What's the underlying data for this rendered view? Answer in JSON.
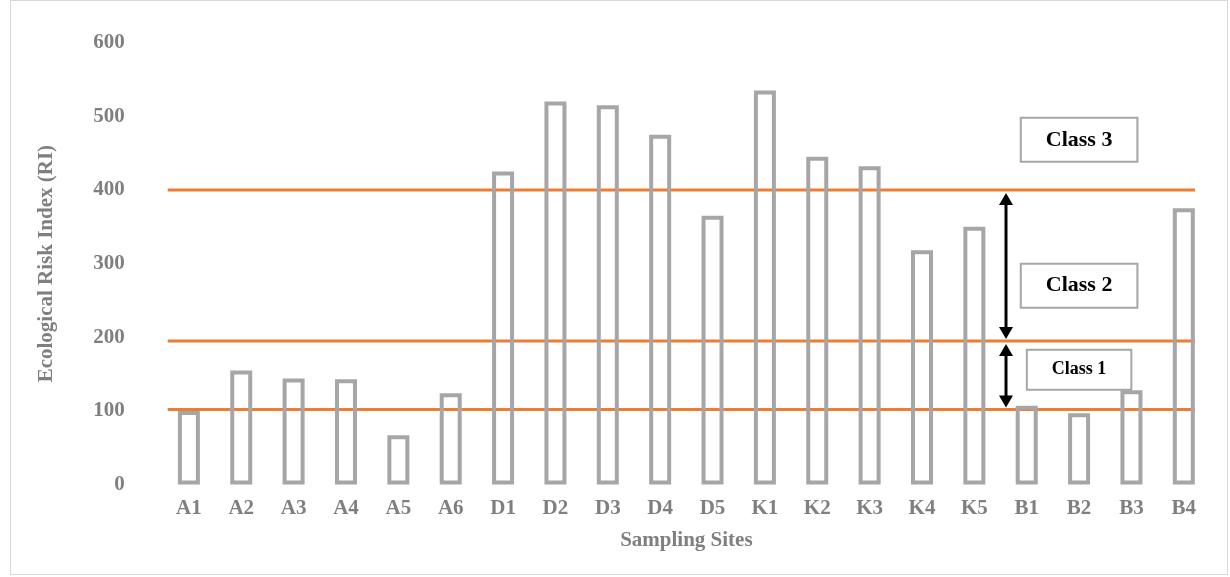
{
  "chart_data": {
    "type": "bar",
    "xlabel": "Sampling Sites",
    "ylabel": "Ecological Risk Index (RI)",
    "categories": [
      "A1",
      "A2",
      "A3",
      "A4",
      "A5",
      "A6",
      "D1",
      "D2",
      "D3",
      "D4",
      "D5",
      "K1",
      "K2",
      "K3",
      "K4",
      "K5",
      "B1",
      "B2",
      "B3",
      "B4"
    ],
    "values": [
      100,
      155,
      144,
      143,
      67,
      124,
      425,
      520,
      515,
      475,
      365,
      535,
      445,
      432,
      318,
      350,
      107,
      97,
      128,
      375
    ],
    "color": "#a6a6a6",
    "ylim": [
      0,
      600
    ],
    "yticks": [
      0,
      100,
      200,
      300,
      400,
      500,
      600
    ],
    "grid": false,
    "legend": false,
    "ref_lines": [
      {
        "axis": "y",
        "value": 400,
        "color": "#ed7d31"
      },
      {
        "axis": "y",
        "value": 195,
        "color": "#ed7d31"
      },
      {
        "axis": "y",
        "value": 102,
        "color": "#ed7d31"
      }
    ],
    "annotations": [
      "Class 3",
      "Class 2",
      "Class 1"
    ]
  }
}
